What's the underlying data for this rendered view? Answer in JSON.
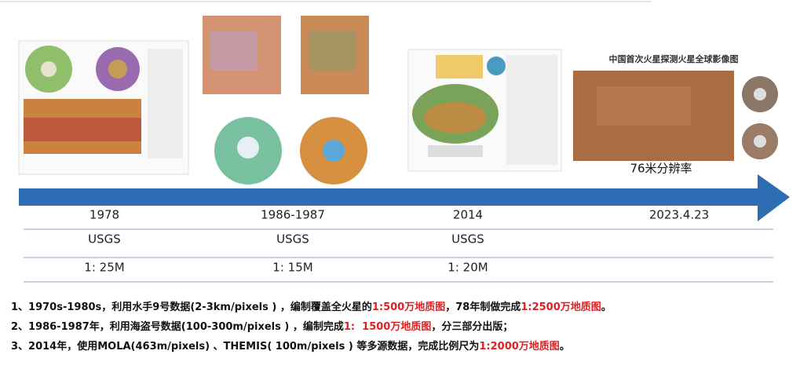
{
  "figure": {
    "image_title": "中国首次火星探测火星全球影像图",
    "image_caption": "76米分辨率"
  },
  "timeline": {
    "columns": [
      {
        "date": "1978",
        "agency": "USGS",
        "scale": "1: 25M"
      },
      {
        "date": "1986-1987",
        "agency": "USGS",
        "scale": "1: 15M"
      },
      {
        "date": "2014",
        "agency": "USGS",
        "scale": "1: 20M"
      },
      {
        "date": "2023.4.23"
      }
    ]
  },
  "notes": [
    {
      "segments": [
        {
          "text": "1、1970s-1980s，利用水手9号数据(2-3km/pixels ) ，编制覆盖全火星的",
          "highlight": false
        },
        {
          "text": "1:500万地质图",
          "highlight": true
        },
        {
          "text": "，78年制做完成",
          "highlight": false
        },
        {
          "text": "1:2500万地质图",
          "highlight": true
        },
        {
          "text": "。",
          "highlight": false
        }
      ]
    },
    {
      "segments": [
        {
          "text": "2、1986-1987年，利用海盗号数据(100-300m/pixels ) ，编制完成",
          "highlight": false
        },
        {
          "text": "1:  1500万地质图",
          "highlight": true
        },
        {
          "text": "，分三部分出版；",
          "highlight": false
        }
      ]
    },
    {
      "segments": [
        {
          "text": "3、2014年，使用MOLA(463m/pixels) 、THEMIS( 100m/pixels ) 等多源数据，完成比例尺为",
          "highlight": false
        },
        {
          "text": "1:2000万地质图",
          "highlight": true
        },
        {
          "text": "。",
          "highlight": false
        }
      ]
    }
  ]
}
